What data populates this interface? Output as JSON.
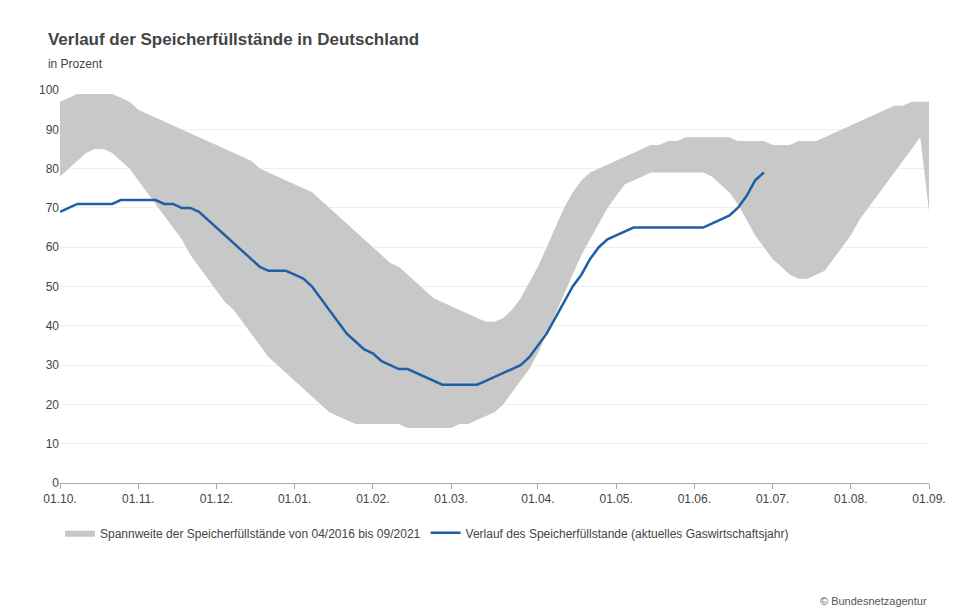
{
  "chart_data": {
    "type": "line",
    "title": "Verlauf der Speicherfüllstände in Deutschland",
    "subtitle": "in Prozent",
    "annotations": [
      "© Bundesnetzagentur"
    ],
    "categories": [
      "01.10.",
      null,
      null,
      null,
      null,
      null,
      null,
      null,
      null,
      "01.11.",
      null,
      null,
      null,
      null,
      null,
      null,
      null,
      null,
      "01.12.",
      null,
      null,
      null,
      null,
      null,
      null,
      null,
      null,
      "01.01.",
      null,
      null,
      null,
      null,
      null,
      null,
      null,
      null,
      "01.02.",
      null,
      null,
      null,
      null,
      null,
      null,
      null,
      null,
      "01.03.",
      null,
      null,
      null,
      null,
      null,
      null,
      null,
      null,
      null,
      "01.04.",
      null,
      null,
      null,
      null,
      null,
      null,
      null,
      null,
      "01.05.",
      null,
      null,
      null,
      null,
      null,
      null,
      null,
      null,
      "01.06.",
      null,
      null,
      null,
      null,
      null,
      null,
      null,
      null,
      "01.07.",
      null,
      null,
      null,
      null,
      null,
      null,
      null,
      null,
      "01.08.",
      null,
      null,
      null,
      null,
      null,
      null,
      null,
      null,
      "01.09."
    ],
    "series": [
      {
        "name": "Spannweite der Speicherfüllstände von 04/2016 bis 09/2021",
        "type": "band",
        "color": "#c8c8c8",
        "upper": [
          97,
          98,
          99,
          99,
          99,
          99,
          99,
          98,
          97,
          95,
          94,
          93,
          92,
          91,
          90,
          89,
          88,
          87,
          86,
          85,
          84,
          83,
          82,
          80,
          79,
          78,
          77,
          76,
          75,
          74,
          72,
          70,
          68,
          66,
          64,
          62,
          60,
          58,
          56,
          55,
          53,
          51,
          49,
          47,
          46,
          45,
          44,
          43,
          42,
          41,
          41,
          42,
          44,
          47,
          51,
          55,
          60,
          65,
          70,
          74,
          77,
          79,
          80,
          81,
          82,
          83,
          84,
          85,
          86,
          86,
          87,
          87,
          88,
          88,
          88,
          88,
          88,
          88,
          87,
          87,
          87,
          87,
          86,
          86,
          86,
          87,
          87,
          87,
          88,
          89,
          90,
          91,
          92,
          93,
          94,
          95,
          96,
          96,
          97,
          97,
          97
        ],
        "lower": [
          78,
          80,
          82,
          84,
          85,
          85,
          84,
          82,
          80,
          77,
          74,
          71,
          68,
          65,
          62,
          58,
          55,
          52,
          49,
          46,
          44,
          41,
          38,
          35,
          32,
          30,
          28,
          26,
          24,
          22,
          20,
          18,
          17,
          16,
          15,
          15,
          15,
          15,
          15,
          15,
          14,
          14,
          14,
          14,
          14,
          14,
          15,
          15,
          16,
          17,
          18,
          20,
          23,
          26,
          29,
          33,
          38,
          43,
          48,
          53,
          58,
          62,
          66,
          70,
          73,
          76,
          77,
          78,
          79,
          79,
          79,
          79,
          79,
          79,
          79,
          78,
          76,
          74,
          71,
          67,
          63,
          60,
          57,
          55,
          53,
          52,
          52,
          53,
          54,
          57,
          60,
          63,
          67,
          70,
          73,
          76,
          79,
          82,
          85,
          88,
          69
        ]
      },
      {
        "name": "Verlauf des Speicherfüllstande (aktuelles Gaswirtschaftsjahr)",
        "type": "line",
        "color": "#1f5fa6",
        "values": [
          69,
          70,
          71,
          71,
          71,
          71,
          71,
          72,
          72,
          72,
          72,
          72,
          71,
          71,
          70,
          70,
          69,
          67,
          65,
          63,
          61,
          59,
          57,
          55,
          54,
          54,
          54,
          53,
          52,
          50,
          47,
          44,
          41,
          38,
          36,
          34,
          33,
          31,
          30,
          29,
          29,
          28,
          27,
          26,
          25,
          25,
          25,
          25,
          25,
          26,
          27,
          28,
          29,
          30,
          32,
          35,
          38,
          42,
          46,
          50,
          53,
          57,
          60,
          62,
          63,
          64,
          65,
          65,
          65,
          65,
          65,
          65,
          65,
          65,
          65,
          66,
          67,
          68,
          70,
          73,
          77,
          79,
          null,
          null,
          null,
          null,
          null,
          null,
          null,
          null,
          null,
          null,
          null,
          null,
          null,
          null,
          null,
          null,
          null,
          null,
          null
        ]
      }
    ],
    "ylim": [
      0,
      100
    ],
    "yticks": [
      0,
      10,
      20,
      30,
      40,
      50,
      60,
      70,
      80,
      90,
      100
    ],
    "grid": true,
    "legend": "bottom left"
  }
}
